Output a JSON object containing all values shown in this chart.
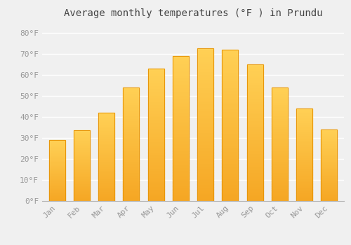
{
  "title": "Average monthly temperatures (°F ) in Prundu",
  "months": [
    "Jan",
    "Feb",
    "Mar",
    "Apr",
    "May",
    "Jun",
    "Jul",
    "Aug",
    "Sep",
    "Oct",
    "Nov",
    "Dec"
  ],
  "values": [
    29,
    33.5,
    42,
    54,
    63,
    69,
    72.5,
    72,
    65,
    54,
    44,
    34
  ],
  "bar_color_bottom": "#F5A623",
  "bar_color_top": "#FFD966",
  "bar_color_edge": "#E8960A",
  "background_color": "#F0F0F0",
  "grid_color": "#FFFFFF",
  "text_color": "#999999",
  "title_color": "#444444",
  "ylim": [
    0,
    85
  ],
  "yticks": [
    0,
    10,
    20,
    30,
    40,
    50,
    60,
    70,
    80
  ],
  "ytick_labels": [
    "0°F",
    "10°F",
    "20°F",
    "30°F",
    "40°F",
    "50°F",
    "60°F",
    "70°F",
    "80°F"
  ],
  "title_fontsize": 10,
  "tick_fontsize": 8,
  "font_family": "monospace"
}
